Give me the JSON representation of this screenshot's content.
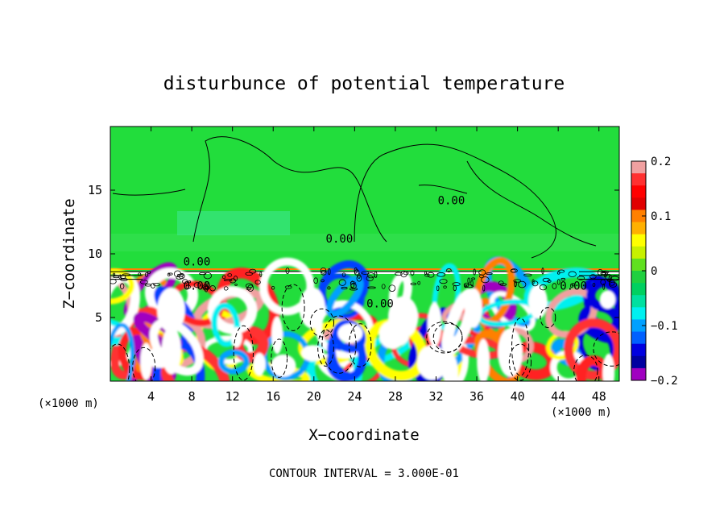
{
  "chart_data": {
    "type": "heatmap",
    "title": "disturbunce of potential temperature",
    "xlabel": "X−coordinate",
    "ylabel": "Z−coordinate",
    "x_unit_left": "(×1000 m)",
    "x_unit_right": "(×1000 m)",
    "footer": "CONTOUR INTERVAL = 3.000E-01",
    "xlim": [
      0,
      50
    ],
    "ylim": [
      0,
      20
    ],
    "xticks": [
      4,
      8,
      12,
      16,
      20,
      24,
      28,
      32,
      36,
      40,
      44,
      48
    ],
    "yticks": [
      5,
      10,
      15
    ],
    "colorbar": {
      "ticks": [
        0.2,
        0.1,
        0,
        -0.1,
        -0.2
      ],
      "tick_labels": [
        "0.2",
        "0.1",
        "0",
        "−0.1",
        "−0.2"
      ],
      "range": [
        -0.2,
        0.2
      ],
      "colors": [
        "#f0a0a0",
        "#ff3030",
        "#ff0000",
        "#e00000",
        "#ff8000",
        "#ffb000",
        "#ffff00",
        "#c8f000",
        "#60e020",
        "#20d040",
        "#00d060",
        "#00e0a0",
        "#00f0f0",
        "#00a0ff",
        "#0060ff",
        "#0000e0",
        "#0000a0",
        "#a000c0"
      ]
    },
    "contour_labels": [
      {
        "x": 33.5,
        "z": 14.2,
        "text": "0.00"
      },
      {
        "x": 22.5,
        "z": 11.2,
        "text": "0.00"
      },
      {
        "x": 8.5,
        "z": 9.4,
        "text": "0.00"
      },
      {
        "x": 26.5,
        "z": 6.1,
        "text": "0.00"
      },
      {
        "x": 8.5,
        "z": 7.5,
        "text": "0.00"
      },
      {
        "x": 45.5,
        "z": 7.5,
        "text": "0.00"
      }
    ],
    "field_summary": {
      "upper_layer_z": [
        9,
        20
      ],
      "upper_layer_value": 0.0,
      "inversion_z": 8.9,
      "mixed_layer_z": [
        0,
        8
      ],
      "mixed_layer_value_range": [
        -0.2,
        0.2
      ]
    }
  }
}
